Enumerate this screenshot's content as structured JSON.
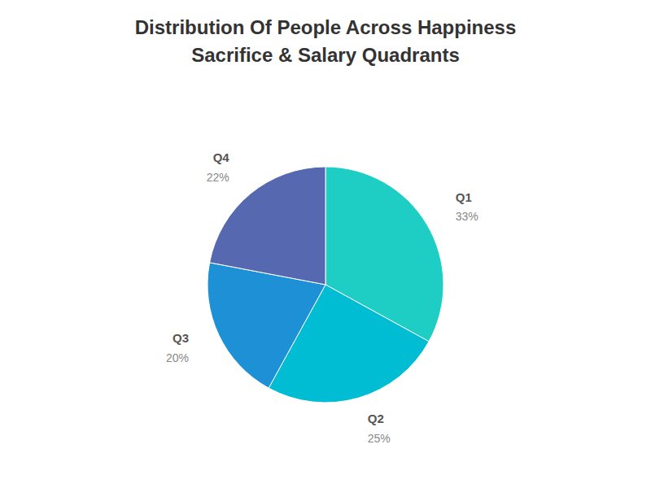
{
  "chart_data": {
    "type": "pie",
    "title": "Distribution Of People Across Happiness",
    "subtitle": "Sacrifice & Salary Quadrants",
    "categories": [
      "Q1",
      "Q2",
      "Q3",
      "Q4"
    ],
    "values": [
      33,
      25,
      20,
      22
    ],
    "value_labels": [
      "33%",
      "25%",
      "20%",
      "22%"
    ],
    "colors": [
      "#1ECDC4",
      "#00BDD4",
      "#1E90D5",
      "#5568B0"
    ],
    "data_labels": true
  }
}
